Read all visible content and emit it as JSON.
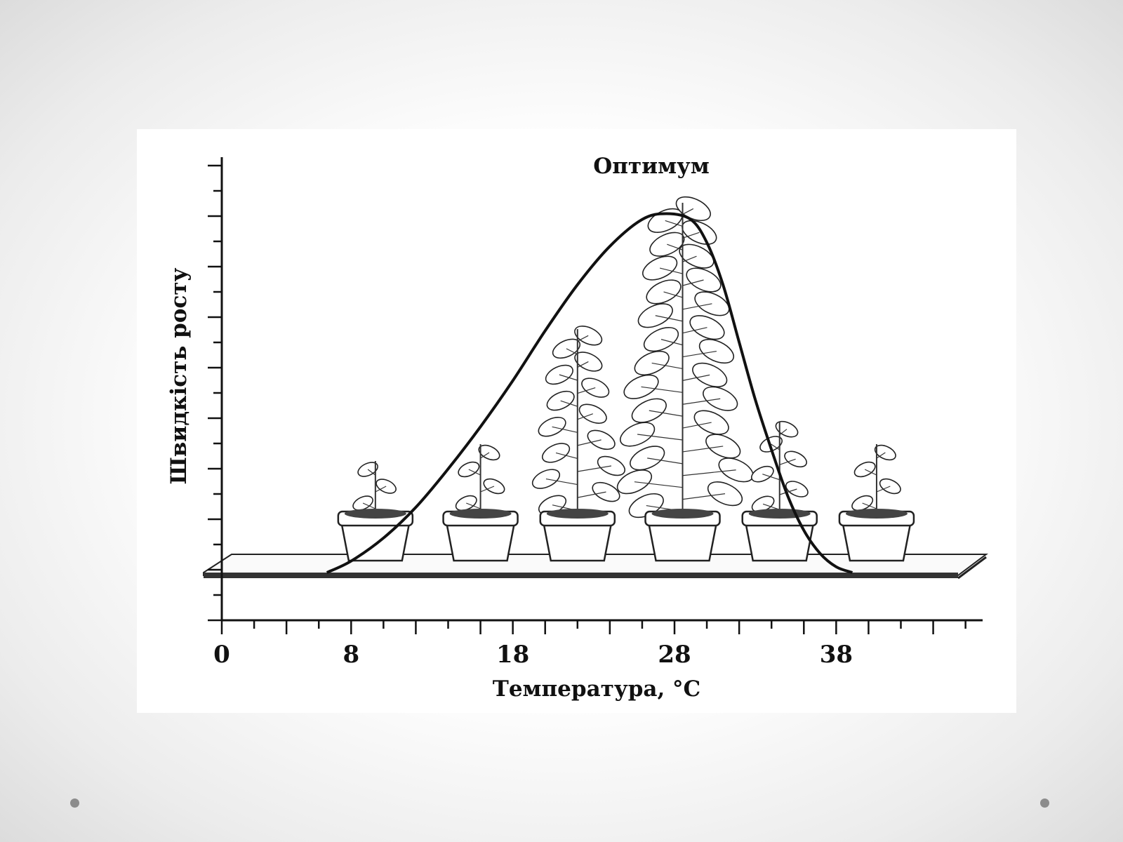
{
  "chart_data": {
    "type": "line",
    "xlabel": "Температура, °С",
    "ylabel": "Швидкість росту",
    "xlim": [
      0,
      50
    ],
    "ylim": [
      0,
      10
    ],
    "x_ticks": [
      0,
      8,
      18,
      28,
      38
    ],
    "x_tick_labels": [
      "0",
      "8",
      "18",
      "28",
      "38"
    ],
    "annotation": "Оптимум",
    "series": [
      {
        "x": [
          6.5,
          8,
          10,
          12,
          14,
          16,
          18,
          20,
          22,
          24,
          26,
          27.5,
          29,
          30,
          31,
          32,
          33,
          34,
          35,
          36,
          37,
          38,
          39
        ],
        "values": [
          0,
          0.3,
          0.9,
          1.7,
          2.7,
          3.8,
          5.0,
          6.3,
          7.5,
          8.5,
          9.2,
          9.35,
          9.2,
          8.6,
          7.5,
          6.0,
          4.5,
          3.2,
          2.0,
          1.1,
          0.5,
          0.15,
          0
        ]
      }
    ],
    "plants": [
      {
        "x": 9.5,
        "size": 0.08
      },
      {
        "x": 16,
        "size": 0.14
      },
      {
        "x": 22,
        "size": 0.55
      },
      {
        "x": 28.5,
        "size": 1.0
      },
      {
        "x": 34.5,
        "size": 0.22
      },
      {
        "x": 40.5,
        "size": 0.14
      }
    ]
  }
}
